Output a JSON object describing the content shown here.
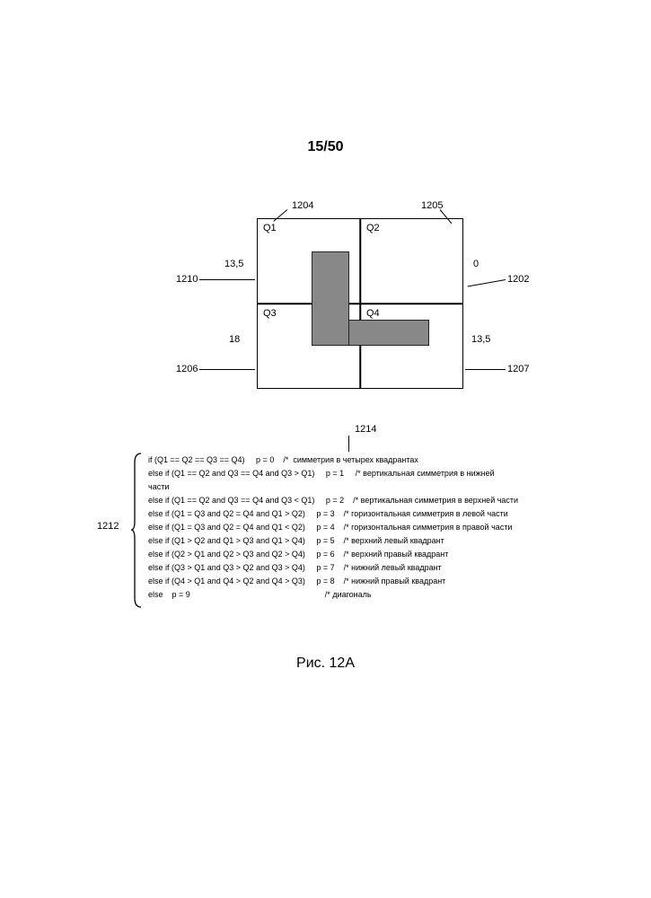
{
  "page_number": "15/50",
  "figure": {
    "quadrants": {
      "q1": "Q1",
      "q2": "Q2",
      "q3": "Q3",
      "q4": "Q4"
    },
    "values": {
      "left_top": "13,5",
      "right_top": "0",
      "left_bottom": "18",
      "right_bottom": "13,5"
    },
    "refs": {
      "r1204": "1204",
      "r1205": "1205",
      "r1210": "1210",
      "r1202": "1202",
      "r1206": "1206",
      "r1207": "1207"
    }
  },
  "code_ref_1214": "1214",
  "brace_ref_1212": "1212",
  "code": {
    "l0": "if (Q1 == Q2 == Q3 == Q4)     p = 0    /*  симметрия в четырех квадрантах",
    "l1": "else if (Q1 == Q2 and Q3 == Q4 and Q3 > Q1)     p = 1     /* вертикальная симметрия в нижней",
    "l1b": "части",
    "l2": "else if (Q1 == Q2 and Q3 == Q4 and Q3 < Q1)     p = 2    /* вертикальная симметрия в верхней части",
    "l3": "else if (Q1 = Q3 and Q2 = Q4 and Q1 > Q2)     p = 3    /* горизонтальная симметрия в левой части",
    "l4": "else if (Q1 = Q3 and Q2 = Q4 and Q1 < Q2)     p = 4    /* горизонтальная симметрия в правой части",
    "l5": "else if (Q1 > Q2 and Q1 > Q3 and Q1 > Q4)     p = 5    /* верхний левый квадрант",
    "l6": "else if (Q2 > Q1 and Q2 > Q3 and Q2 > Q4)     p = 6    /* верхний правый квадрант",
    "l7": "else if (Q3 > Q1 and Q3 > Q2 and Q3 > Q4)     p = 7    /* нижний левый квадрант",
    "l8": "else if (Q4 > Q1 and Q4 > Q2 and Q4 > Q3)     p = 8    /* нижний правый квадрант",
    "l9": "else    p = 9                                                            /* диагональ"
  },
  "caption": "Рис. 12A",
  "colors": {
    "shape_fill": "#8a8a8a",
    "black": "#000000",
    "bg": "#ffffff"
  }
}
